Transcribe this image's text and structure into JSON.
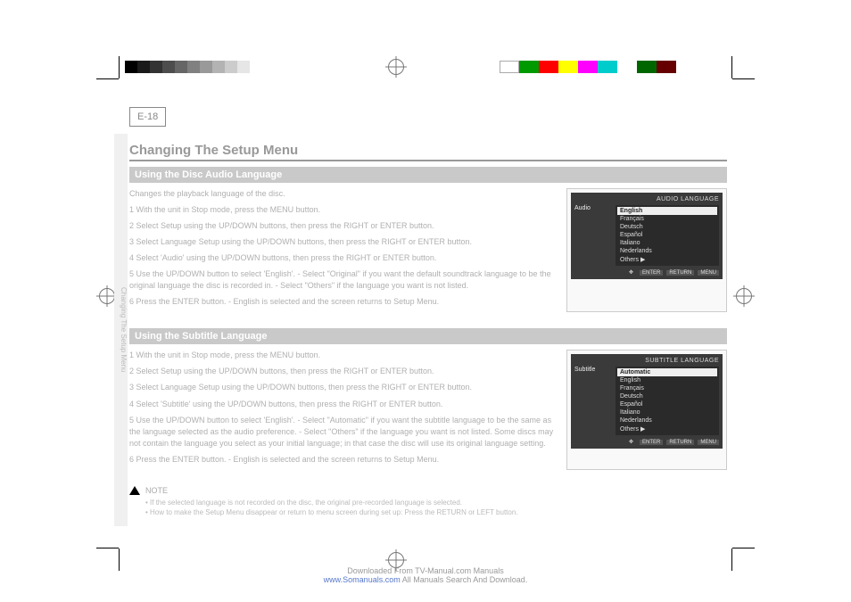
{
  "crop_marks": {
    "color": "#000000"
  },
  "gray_swatches": [
    "#000000",
    "#1a1a1a",
    "#333333",
    "#4d4d4d",
    "#666666",
    "#808080",
    "#999999",
    "#b3b3b3",
    "#cccccc",
    "#e6e6e6"
  ],
  "color_swatches": [
    "#ffffff",
    "#009900",
    "#ff0000",
    "#ffff00",
    "#ff00ff",
    "#00cccc",
    "#ffffff",
    "#006600",
    "#660000"
  ],
  "page_number": "E-18",
  "main_heading": "Changing The Setup Menu",
  "side_tab": "Changing The Setup Menu",
  "sections": [
    {
      "bar": "Using the Disc Audio Language",
      "intro": "Changes the playback language of the disc.",
      "steps": [
        "With the unit in Stop mode, press the MENU button.",
        "Select Setup using the UP/DOWN buttons, then press the RIGHT or ENTER button.",
        "Select Language Setup using the UP/DOWN buttons, then press the RIGHT or ENTER button.",
        "Select 'Audio' using the UP/DOWN buttons, then press the RIGHT or ENTER button.",
        "Use the UP/DOWN button to select 'English'.  - Select \"Original\" if you want the default soundtrack language to be the original language the disc is recorded in.  - Select \"Others\" if the language you want is not listed.",
        "Press the ENTER button.  - English is selected and the screen returns to Setup Menu."
      ],
      "screen": {
        "title": "AUDIO LANGUAGE",
        "left_label": "Audio",
        "options": [
          "English",
          "Français",
          "Deutsch",
          "Español",
          "Italiano",
          "Nederlands",
          "Others  ▶"
        ],
        "selected": "English",
        "footer": [
          "ENTER",
          "RETURN",
          "MENU"
        ]
      }
    },
    {
      "bar": "Using the Subtitle Language",
      "steps": [
        "With the unit in Stop mode, press the MENU button.",
        "Select Setup using the UP/DOWN buttons, then press the RIGHT or ENTER button.",
        "Select Language Setup using the UP/DOWN buttons, then press the RIGHT or ENTER button.",
        "Select 'Subtitle' using the UP/DOWN buttons, then press the RIGHT or ENTER button.",
        "Use the UP/DOWN button to select 'English'.  - Select \"Automatic\" if you want the subtitle language to be the same as the language selected as the audio preference.  - Select \"Others\" if the language you want is not listed. Some discs may not contain the language you select as your initial language; in that case the disc will use its original language setting.",
        "Press the ENTER button.  - English is selected and the screen returns to Setup Menu."
      ],
      "screen": {
        "title": "SUBTITLE LANGUAGE",
        "left_label": "Subtitle",
        "options": [
          "Automatic",
          "English",
          "Français",
          "Deutsch",
          "Español",
          "Italiano",
          "Nederlands",
          "Others  ▶"
        ],
        "selected": "Automatic",
        "footer": [
          "ENTER",
          "RETURN",
          "MENU"
        ]
      }
    }
  ],
  "note": {
    "label": "NOTE",
    "lines": [
      "• If the selected language is not recorded on the disc, the original pre-recorded language is selected.",
      "• How to make the Setup Menu disappear or return to menu screen during set up: Press the RETURN or LEFT button."
    ]
  },
  "footer": {
    "line1": "Downloaded From TV-Manual.com Manuals",
    "line2": "All Manuals Search And Download.",
    "link": "www.Somanuals.com"
  }
}
